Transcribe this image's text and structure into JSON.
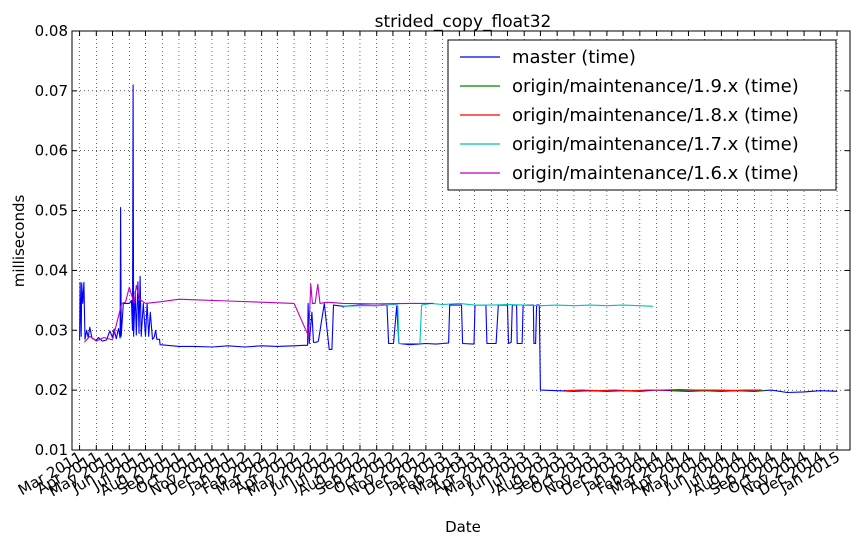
{
  "chart_data": {
    "type": "line",
    "title": "strided_copy_float32",
    "xlabel": "Date",
    "ylabel": "milliseconds",
    "ylim": [
      0.01,
      0.08
    ],
    "yticks": [
      "0.01",
      "0.02",
      "0.03",
      "0.04",
      "0.05",
      "0.06",
      "0.07",
      "0.08"
    ],
    "xlim": [
      "2011-02-15",
      "2015-01-25"
    ],
    "xticks": [
      {
        "date": "2011-03-01",
        "label": "Mar 2011"
      },
      {
        "date": "2011-04-01",
        "label": "Apr 2011"
      },
      {
        "date": "2011-05-01",
        "label": "May 2011"
      },
      {
        "date": "2011-06-01",
        "label": "Jun 2011"
      },
      {
        "date": "2011-07-01",
        "label": "Jul 2011"
      },
      {
        "date": "2011-08-01",
        "label": "Aug 2011"
      },
      {
        "date": "2011-09-01",
        "label": "Sep 2011"
      },
      {
        "date": "2011-10-01",
        "label": "Oct 2011"
      },
      {
        "date": "2011-11-01",
        "label": "Nov 2011"
      },
      {
        "date": "2011-12-01",
        "label": "Dec 2011"
      },
      {
        "date": "2012-01-01",
        "label": "Jan 2012"
      },
      {
        "date": "2012-02-01",
        "label": "Feb 2012"
      },
      {
        "date": "2012-03-01",
        "label": "Mar 2012"
      },
      {
        "date": "2012-04-01",
        "label": "Apr 2012"
      },
      {
        "date": "2012-05-01",
        "label": "May 2012"
      },
      {
        "date": "2012-06-01",
        "label": "Jun 2012"
      },
      {
        "date": "2012-07-01",
        "label": "Jul 2012"
      },
      {
        "date": "2012-08-01",
        "label": "Aug 2012"
      },
      {
        "date": "2012-09-01",
        "label": "Sep 2012"
      },
      {
        "date": "2012-10-01",
        "label": "Oct 2012"
      },
      {
        "date": "2012-11-01",
        "label": "Nov 2012"
      },
      {
        "date": "2012-12-01",
        "label": "Dec 2012"
      },
      {
        "date": "2013-01-01",
        "label": "Jan 2013"
      },
      {
        "date": "2013-02-01",
        "label": "Feb 2013"
      },
      {
        "date": "2013-03-01",
        "label": "Mar 2013"
      },
      {
        "date": "2013-04-01",
        "label": "Apr 2013"
      },
      {
        "date": "2013-05-01",
        "label": "May 2013"
      },
      {
        "date": "2013-06-01",
        "label": "Jun 2013"
      },
      {
        "date": "2013-07-01",
        "label": "Jul 2013"
      },
      {
        "date": "2013-08-01",
        "label": "Aug 2013"
      },
      {
        "date": "2013-09-01",
        "label": "Sep 2013"
      },
      {
        "date": "2013-10-01",
        "label": "Oct 2013"
      },
      {
        "date": "2013-11-01",
        "label": "Nov 2013"
      },
      {
        "date": "2013-12-01",
        "label": "Dec 2013"
      },
      {
        "date": "2014-01-01",
        "label": "Jan 2014"
      },
      {
        "date": "2014-02-01",
        "label": "Feb 2014"
      },
      {
        "date": "2014-03-01",
        "label": "Mar 2014"
      },
      {
        "date": "2014-04-01",
        "label": "Apr 2014"
      },
      {
        "date": "2014-05-01",
        "label": "May 2014"
      },
      {
        "date": "2014-06-01",
        "label": "Jun 2014"
      },
      {
        "date": "2014-07-01",
        "label": "Jul 2014"
      },
      {
        "date": "2014-08-01",
        "label": "Aug 2014"
      },
      {
        "date": "2014-09-01",
        "label": "Sep 2014"
      },
      {
        "date": "2014-10-01",
        "label": "Oct 2014"
      },
      {
        "date": "2014-11-01",
        "label": "Nov 2014"
      },
      {
        "date": "2014-12-01",
        "label": "Dec 2014"
      },
      {
        "date": "2015-01-01",
        "label": "Jan 2015"
      }
    ],
    "grid": true,
    "legend_position": "top-right",
    "series": [
      {
        "name": "master (time)",
        "color": "#0000ff",
        "points": [
          [
            "2011-03-01",
            0.0283
          ],
          [
            "2011-03-02",
            0.038
          ],
          [
            "2011-03-04",
            0.029
          ],
          [
            "2011-03-05",
            0.0379
          ],
          [
            "2011-03-07",
            0.0345
          ],
          [
            "2011-03-09",
            0.038
          ],
          [
            "2011-03-11",
            0.0285
          ],
          [
            "2011-03-14",
            0.03
          ],
          [
            "2011-03-17",
            0.0288
          ],
          [
            "2011-03-20",
            0.0305
          ],
          [
            "2011-03-24",
            0.0287
          ],
          [
            "2011-04-01",
            0.0283
          ],
          [
            "2011-04-05",
            0.0288
          ],
          [
            "2011-04-12",
            0.0282
          ],
          [
            "2011-04-20",
            0.0284
          ],
          [
            "2011-04-26",
            0.0299
          ],
          [
            "2011-05-01",
            0.0288
          ],
          [
            "2011-05-04",
            0.0302
          ],
          [
            "2011-05-08",
            0.0286
          ],
          [
            "2011-05-12",
            0.0303
          ],
          [
            "2011-05-15",
            0.0287
          ],
          [
            "2011-05-16",
            0.0505
          ],
          [
            "2011-05-17",
            0.029
          ],
          [
            "2011-05-21",
            0.0345
          ],
          [
            "2011-05-27",
            0.0345
          ],
          [
            "2011-06-01",
            0.0345
          ],
          [
            "2011-06-05",
            0.035
          ],
          [
            "2011-06-07",
            0.03
          ],
          [
            "2011-06-08",
            0.071
          ],
          [
            "2011-06-09",
            0.029
          ],
          [
            "2011-06-12",
            0.0365
          ],
          [
            "2011-06-14",
            0.0292
          ],
          [
            "2011-06-17",
            0.0381
          ],
          [
            "2011-06-19",
            0.0295
          ],
          [
            "2011-06-21",
            0.039
          ],
          [
            "2011-06-23",
            0.029
          ],
          [
            "2011-06-27",
            0.0345
          ],
          [
            "2011-07-01",
            0.029
          ],
          [
            "2011-07-04",
            0.0345
          ],
          [
            "2011-07-07",
            0.029
          ],
          [
            "2011-07-10",
            0.033
          ],
          [
            "2011-07-14",
            0.0285
          ],
          [
            "2011-07-17",
            0.0288
          ],
          [
            "2011-07-20",
            0.03
          ],
          [
            "2011-07-22",
            0.0285
          ],
          [
            "2011-07-27",
            0.0285
          ],
          [
            "2011-07-28",
            0.0276
          ],
          [
            "2011-08-10",
            0.0275
          ],
          [
            "2011-09-01",
            0.0273
          ],
          [
            "2011-10-01",
            0.0273
          ],
          [
            "2011-11-01",
            0.0272
          ],
          [
            "2011-12-01",
            0.0274
          ],
          [
            "2012-01-01",
            0.0272
          ],
          [
            "2012-02-01",
            0.0274
          ],
          [
            "2012-03-01",
            0.0273
          ],
          [
            "2012-04-01",
            0.0274
          ],
          [
            "2012-04-20",
            0.0275
          ],
          [
            "2012-04-26",
            0.0275
          ],
          [
            "2012-04-27",
            0.0345
          ],
          [
            "2012-04-29",
            0.0278
          ],
          [
            "2012-05-04",
            0.033
          ],
          [
            "2012-05-07",
            0.028
          ],
          [
            "2012-05-12",
            0.028
          ],
          [
            "2012-05-16",
            0.0282
          ],
          [
            "2012-05-27",
            0.0345
          ],
          [
            "2012-06-05",
            0.0268
          ],
          [
            "2012-06-10",
            0.0268
          ],
          [
            "2012-06-13",
            0.0342
          ],
          [
            "2012-07-01",
            0.034
          ],
          [
            "2012-08-01",
            0.0342
          ],
          [
            "2012-09-01",
            0.0341
          ],
          [
            "2012-09-15",
            0.0342
          ],
          [
            "2012-09-20",
            0.0342
          ],
          [
            "2012-09-23",
            0.0278
          ],
          [
            "2012-10-02",
            0.0278
          ],
          [
            "2012-10-08",
            0.034
          ],
          [
            "2012-10-12",
            0.0278
          ],
          [
            "2012-11-01",
            0.0276
          ],
          [
            "2012-12-01",
            0.0278
          ],
          [
            "2012-12-20",
            0.0277
          ],
          [
            "2013-01-01",
            0.0278
          ],
          [
            "2013-01-12",
            0.0279
          ],
          [
            "2013-01-14",
            0.0342
          ],
          [
            "2013-02-05",
            0.0342
          ],
          [
            "2013-02-07",
            0.0278
          ],
          [
            "2013-02-28",
            0.0277
          ],
          [
            "2013-03-02",
            0.0342
          ],
          [
            "2013-03-22",
            0.0342
          ],
          [
            "2013-03-24",
            0.0278
          ],
          [
            "2013-04-10",
            0.0278
          ],
          [
            "2013-04-14",
            0.0342
          ],
          [
            "2013-05-01",
            0.0342
          ],
          [
            "2013-05-03",
            0.0278
          ],
          [
            "2013-05-08",
            0.028
          ],
          [
            "2013-05-10",
            0.0342
          ],
          [
            "2013-05-18",
            0.0342
          ],
          [
            "2013-05-19",
            0.0278
          ],
          [
            "2013-05-28",
            0.0278
          ],
          [
            "2013-05-30",
            0.0342
          ],
          [
            "2013-06-18",
            0.0342
          ],
          [
            "2013-06-19",
            0.0278
          ],
          [
            "2013-06-22",
            0.0278
          ],
          [
            "2013-06-24",
            0.0342
          ],
          [
            "2013-06-29",
            0.0342
          ],
          [
            "2013-07-01",
            0.02
          ],
          [
            "2013-08-01",
            0.0199
          ],
          [
            "2013-09-01",
            0.0198
          ],
          [
            "2013-10-01",
            0.0199
          ],
          [
            "2013-11-01",
            0.0198
          ],
          [
            "2013-12-01",
            0.0199
          ],
          [
            "2014-01-01",
            0.0198
          ],
          [
            "2014-02-01",
            0.02
          ],
          [
            "2014-03-01",
            0.0199
          ],
          [
            "2014-04-01",
            0.0198
          ],
          [
            "2014-05-01",
            0.0199
          ],
          [
            "2014-06-01",
            0.0198
          ],
          [
            "2014-07-01",
            0.0199
          ],
          [
            "2014-08-01",
            0.0198
          ],
          [
            "2014-09-01",
            0.02
          ],
          [
            "2014-10-01",
            0.0196
          ],
          [
            "2014-11-01",
            0.0197
          ],
          [
            "2014-12-01",
            0.0199
          ],
          [
            "2015-01-01",
            0.0198
          ]
        ]
      },
      {
        "name": "origin/maintenance/1.9.x (time)",
        "color": "#008000",
        "points": [
          [
            "2014-03-01",
            0.0199
          ],
          [
            "2014-04-01",
            0.02
          ],
          [
            "2014-05-01",
            0.0199
          ],
          [
            "2014-06-01",
            0.02
          ],
          [
            "2014-07-01",
            0.0199
          ],
          [
            "2014-08-01",
            0.02
          ],
          [
            "2014-08-20",
            0.0199
          ]
        ]
      },
      {
        "name": "origin/maintenance/1.8.x (time)",
        "color": "#ff0000",
        "points": [
          [
            "2013-08-15",
            0.0199
          ],
          [
            "2013-09-15",
            0.02
          ],
          [
            "2013-10-15",
            0.0199
          ],
          [
            "2013-11-15",
            0.02
          ],
          [
            "2013-12-15",
            0.0199
          ],
          [
            "2014-01-15",
            0.02
          ],
          [
            "2014-02-15",
            0.02
          ],
          [
            "2014-03-15",
            0.0201
          ],
          [
            "2014-04-15",
            0.02
          ],
          [
            "2014-05-15",
            0.02
          ],
          [
            "2014-06-15",
            0.0199
          ],
          [
            "2014-07-15",
            0.02
          ],
          [
            "2014-08-15",
            0.02
          ]
        ]
      },
      {
        "name": "origin/maintenance/1.7.x (time)",
        "color": "#00bfbf",
        "points": [
          [
            "2012-07-01",
            0.034
          ],
          [
            "2012-08-01",
            0.0341
          ],
          [
            "2012-09-01",
            0.0341
          ],
          [
            "2012-10-01",
            0.0343
          ],
          [
            "2012-10-10",
            0.0342
          ],
          [
            "2012-10-12",
            0.0278
          ],
          [
            "2012-11-20",
            0.0278
          ],
          [
            "2012-11-23",
            0.0342
          ],
          [
            "2012-12-10",
            0.0345
          ],
          [
            "2013-01-01",
            0.0343
          ],
          [
            "2013-02-01",
            0.0345
          ],
          [
            "2013-03-01",
            0.0342
          ],
          [
            "2013-04-01",
            0.0342
          ],
          [
            "2013-05-01",
            0.0343
          ],
          [
            "2013-06-01",
            0.0342
          ],
          [
            "2013-07-01",
            0.0341
          ],
          [
            "2013-08-01",
            0.0342
          ],
          [
            "2013-09-01",
            0.0341
          ],
          [
            "2013-10-01",
            0.0342
          ],
          [
            "2013-11-01",
            0.0341
          ],
          [
            "2013-12-01",
            0.0342
          ],
          [
            "2014-01-01",
            0.0341
          ],
          [
            "2014-01-25",
            0.034
          ]
        ]
      },
      {
        "name": "origin/maintenance/1.6.x (time)",
        "color": "#bf00bf",
        "points": [
          [
            "2011-03-10",
            0.028
          ],
          [
            "2011-03-20",
            0.029
          ],
          [
            "2011-04-01",
            0.0282
          ],
          [
            "2011-04-15",
            0.0288
          ],
          [
            "2011-05-01",
            0.0284
          ],
          [
            "2011-05-18",
            0.0345
          ],
          [
            "2011-05-25",
            0.0347
          ],
          [
            "2011-06-01",
            0.0372
          ],
          [
            "2011-06-05",
            0.036
          ],
          [
            "2011-06-10",
            0.0345
          ],
          [
            "2011-06-14",
            0.0375
          ],
          [
            "2011-06-20",
            0.0352
          ],
          [
            "2011-07-01",
            0.0345
          ],
          [
            "2011-08-01",
            0.0348
          ],
          [
            "2011-09-01",
            0.0352
          ],
          [
            "2011-10-01",
            0.0351
          ],
          [
            "2011-12-01",
            0.0349
          ],
          [
            "2012-02-01",
            0.0347
          ],
          [
            "2012-04-01",
            0.0345
          ],
          [
            "2012-04-28",
            0.029
          ],
          [
            "2012-05-02",
            0.0377
          ],
          [
            "2012-05-05",
            0.0345
          ],
          [
            "2012-05-10",
            0.0345
          ],
          [
            "2012-05-15",
            0.0377
          ],
          [
            "2012-05-19",
            0.0345
          ],
          [
            "2012-06-01",
            0.0347
          ],
          [
            "2012-07-01",
            0.0345
          ],
          [
            "2012-09-01",
            0.0344
          ],
          [
            "2012-11-01",
            0.0345
          ],
          [
            "2012-12-15",
            0.0345
          ]
        ]
      }
    ]
  }
}
